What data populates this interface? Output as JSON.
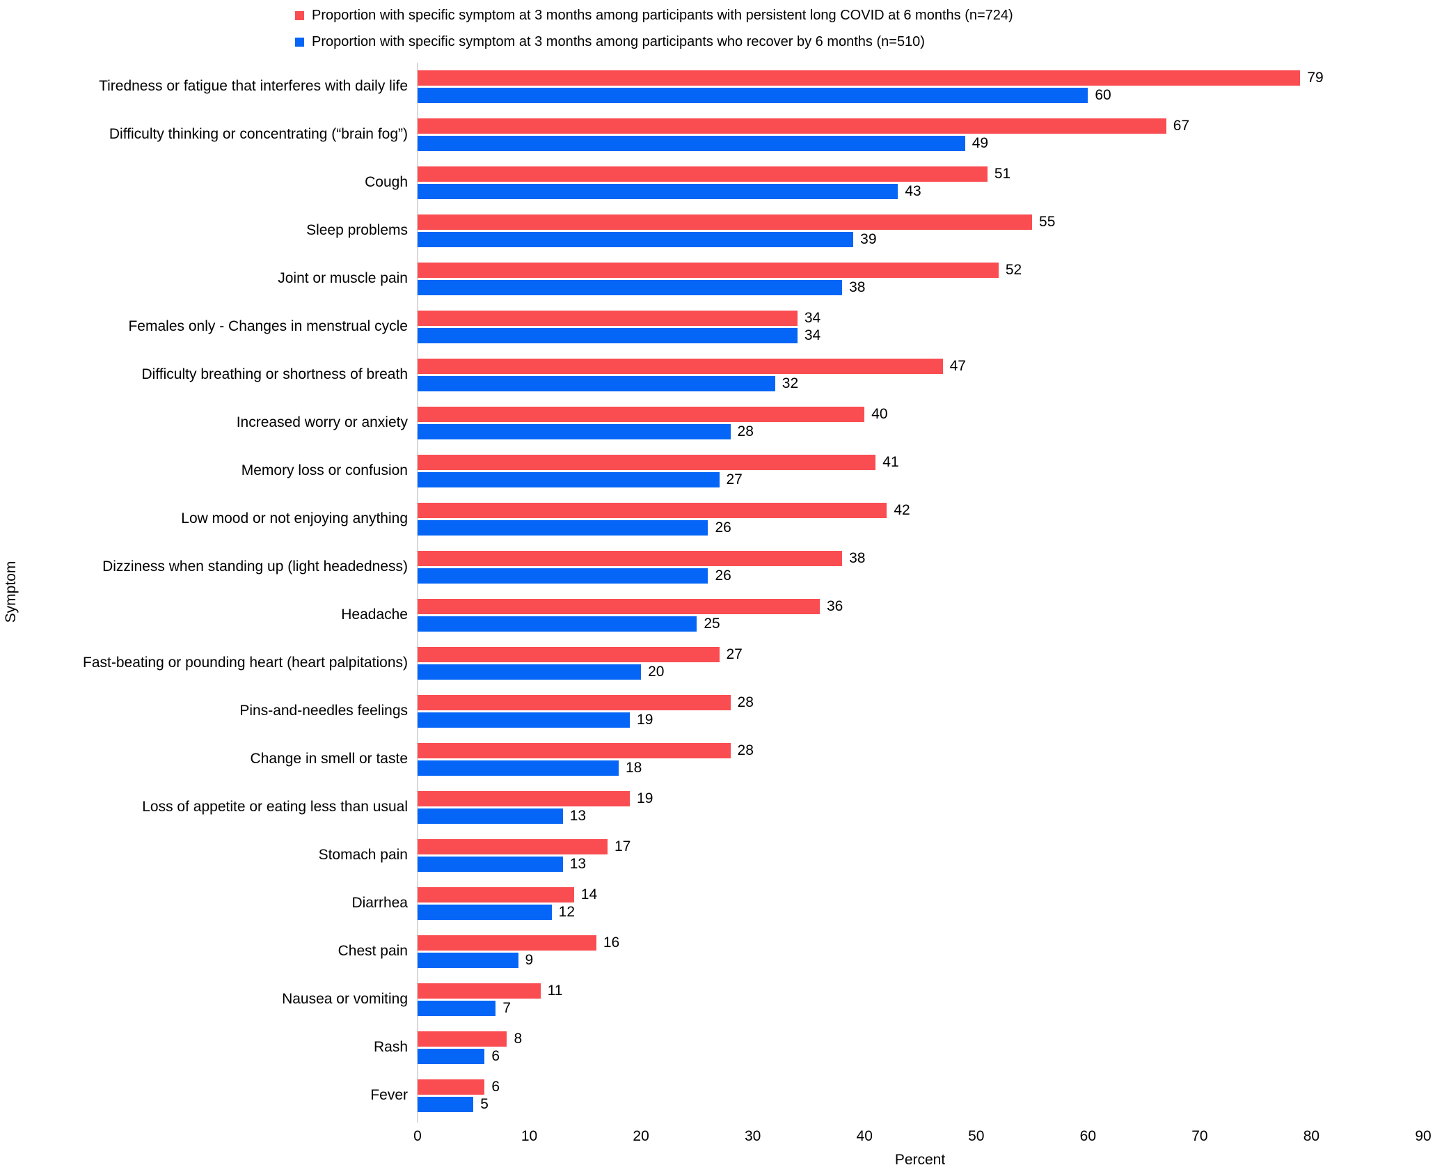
{
  "legend": {
    "series": [
      {
        "label": "Proportion with specific symptom at 3 months among participants with persistent long COVID at 6 months (n=724)",
        "color": "#F94D52"
      },
      {
        "label": "Proportion with specific symptom at 3 months among participants who recover by 6 months (n=510)",
        "color": "#0565F6"
      }
    ]
  },
  "chart_data": {
    "type": "bar",
    "orientation": "horizontal",
    "title": "",
    "xlabel": "Percent",
    "ylabel": "Symptom",
    "xlim": [
      0,
      90
    ],
    "x_ticks": [
      0,
      10,
      20,
      30,
      40,
      50,
      60,
      70,
      80,
      90
    ],
    "grid": false,
    "legend_position": "top",
    "value_labels": true,
    "categories": [
      "Tiredness or fatigue that interferes with daily life",
      "Difficulty thinking or concentrating (“brain fog”)",
      "Cough",
      "Sleep problems",
      "Joint or muscle pain",
      "Females only - Changes in menstrual cycle",
      "Difficulty breathing or shortness of breath",
      "Increased worry or anxiety",
      "Memory loss or confusion",
      "Low mood or not enjoying anything",
      "Dizziness when  standing up (light headedness)",
      "Headache",
      "Fast-beating or pounding heart (heart palpitations)",
      "Pins-and-needles feelings",
      "Change in smell or taste",
      "Loss of appetite or eating less than usual",
      "Stomach pain",
      "Diarrhea",
      "Chest pain",
      "Nausea or vomiting",
      "Rash",
      "Fever"
    ],
    "series": [
      {
        "name": "Persistent long COVID at 6 months (n=724)",
        "color": "#F94D52",
        "values": [
          79,
          67,
          51,
          55,
          52,
          34,
          47,
          40,
          41,
          42,
          38,
          36,
          27,
          28,
          28,
          19,
          17,
          14,
          16,
          11,
          8,
          6
        ]
      },
      {
        "name": "Recover by 6 months (n=510)",
        "color": "#0565F6",
        "values": [
          60,
          49,
          43,
          39,
          38,
          34,
          32,
          28,
          27,
          26,
          26,
          25,
          20,
          19,
          18,
          13,
          13,
          12,
          9,
          7,
          6,
          5
        ]
      }
    ]
  },
  "colors": {
    "axis_line": "#D9D9D9",
    "text": "#000000",
    "background": "#FFFFFF"
  }
}
